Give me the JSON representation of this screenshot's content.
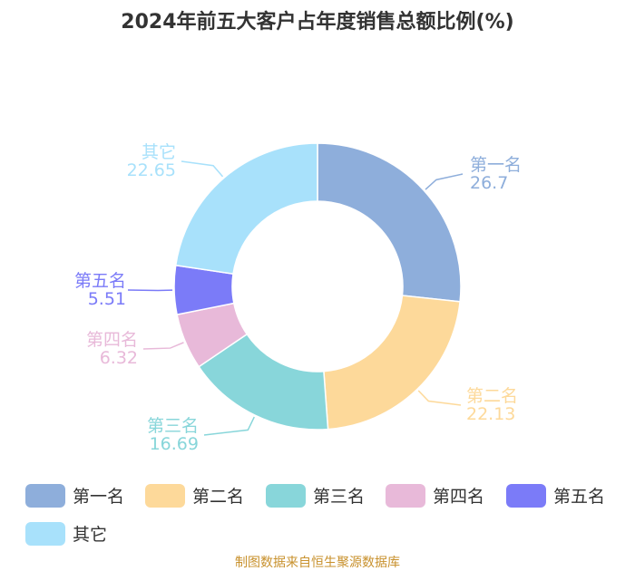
{
  "chart_data": {
    "type": "pie",
    "style": "donut",
    "title": "2024年前五大客户占年度销售总额比例(%)",
    "categories": [
      "第一名",
      "第二名",
      "第三名",
      "第四名",
      "第五名",
      "其它"
    ],
    "values": [
      26.7,
      22.13,
      16.69,
      6.32,
      5.51,
      22.65
    ],
    "value_labels": [
      "26.7",
      "22.13",
      "16.69",
      "6.32",
      "5.51",
      "22.65"
    ],
    "colors": [
      "#8eaedb",
      "#fdd99a",
      "#88d6da",
      "#e8b9d9",
      "#7b7bf8",
      "#a8e1fb"
    ],
    "legend_position": "bottom"
  },
  "source": "制图数据来自恒生聚源数据库"
}
